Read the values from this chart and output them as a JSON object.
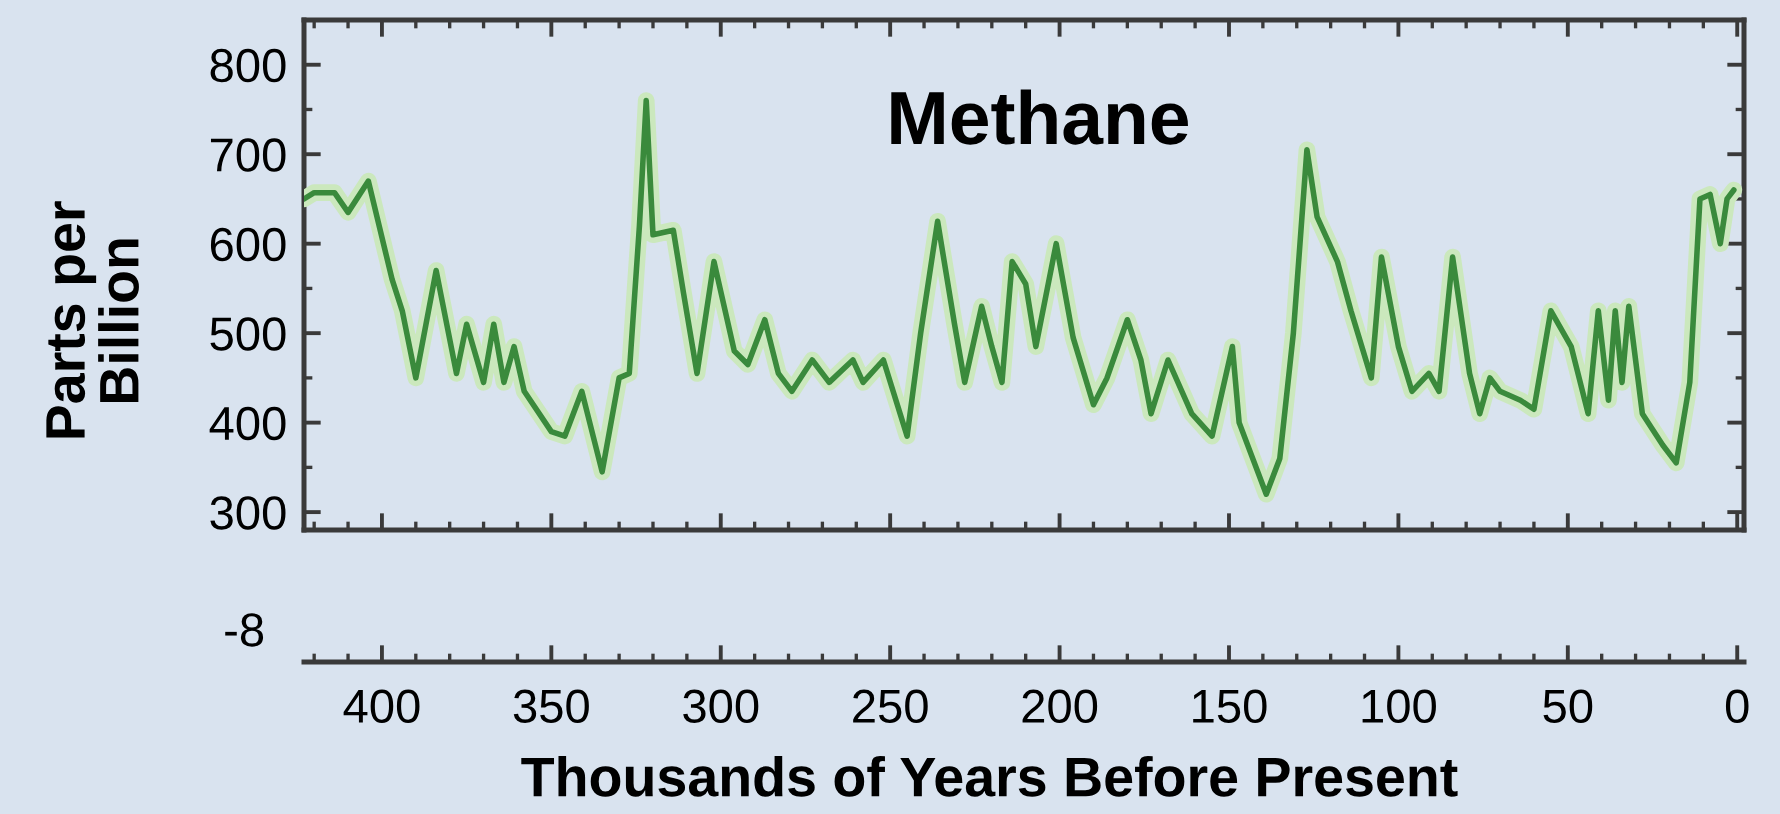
{
  "chart_data": {
    "type": "line",
    "title": "Methane",
    "ylabel": "Parts per\nBillion",
    "xlabel": "Thousands of Years Before Present",
    "x": [
      423,
      420,
      414,
      410,
      404,
      397,
      394,
      390,
      384,
      378,
      375,
      370,
      367,
      364,
      361,
      358,
      350,
      346,
      341,
      335,
      330,
      327,
      324,
      322,
      320,
      314,
      311,
      307,
      302,
      296,
      292,
      287,
      283,
      279,
      273,
      268,
      261,
      258,
      252,
      245,
      241,
      236,
      231,
      228,
      223,
      220,
      217,
      214,
      210,
      207,
      201,
      196,
      190,
      186,
      180,
      176,
      173,
      168,
      161,
      155,
      149,
      147,
      139,
      135,
      131,
      127,
      124,
      118,
      114,
      108,
      105,
      100,
      96,
      91,
      88,
      84,
      79,
      76,
      73,
      70,
      64,
      60,
      55,
      49,
      44,
      41,
      38,
      36,
      34,
      32,
      28,
      22,
      18,
      14,
      11,
      8,
      5,
      3,
      1
    ],
    "series": [
      {
        "color": "#3a8a3c",
        "values": [
          650,
          657,
          657,
          635,
          670,
          560,
          525,
          450,
          570,
          455,
          510,
          445,
          510,
          445,
          485,
          435,
          390,
          385,
          435,
          345,
          450,
          455,
          620,
          760,
          610,
          615,
          545,
          455,
          580,
          480,
          465,
          515,
          455,
          435,
          470,
          445,
          470,
          445,
          470,
          385,
          500,
          625,
          510,
          445,
          530,
          485,
          445,
          580,
          555,
          485,
          600,
          495,
          420,
          450,
          515,
          470,
          410,
          470,
          410,
          385,
          485,
          400,
          320,
          360,
          500,
          705,
          630,
          580,
          525,
          450,
          585,
          485,
          435,
          455,
          435,
          585,
          455,
          410,
          450,
          435,
          425,
          415,
          525,
          485,
          410,
          525,
          425,
          525,
          445,
          530,
          410,
          375,
          355,
          445,
          650,
          655,
          600,
          650,
          660
        ]
      }
    ],
    "xlim": [
      423,
      -2
    ],
    "xticks": [
      400,
      350,
      300,
      250,
      200,
      150,
      100,
      50,
      0
    ],
    "ylim": [
      280,
      850
    ],
    "yticks": [
      300,
      400,
      500,
      600,
      700,
      800
    ],
    "annotations": [
      "-8"
    ]
  }
}
